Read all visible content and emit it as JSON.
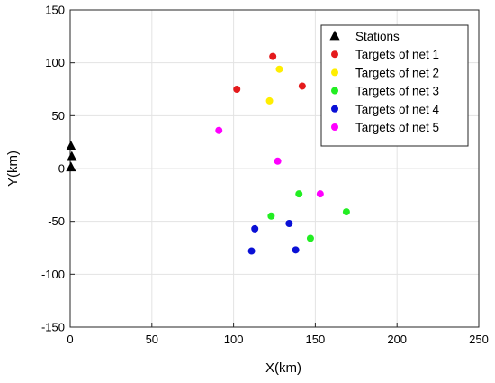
{
  "chart_data": {
    "type": "scatter",
    "xlabel": "X(km)",
    "ylabel": "Y(km)",
    "xlim": [
      0,
      250
    ],
    "ylim": [
      -150,
      150
    ],
    "xticks": [
      0,
      50,
      100,
      150,
      200,
      250
    ],
    "yticks": [
      -150,
      -100,
      -50,
      0,
      50,
      100,
      150
    ],
    "grid": true,
    "legend_position": "top-right",
    "series": [
      {
        "name": "Stations",
        "marker": "triangle",
        "color": "#000000",
        "points": [
          [
            0.5,
            21
          ],
          [
            1.0,
            11
          ],
          [
            0.5,
            1
          ]
        ]
      },
      {
        "name": "Targets of net 1",
        "marker": "circle",
        "color": "#e41a1c",
        "points": [
          [
            124,
            106
          ],
          [
            102,
            75
          ],
          [
            142,
            78
          ]
        ]
      },
      {
        "name": "Targets of net 2",
        "marker": "circle",
        "color": "#ffee00",
        "points": [
          [
            128,
            94
          ],
          [
            122,
            64
          ]
        ]
      },
      {
        "name": "Targets of net 3",
        "marker": "circle",
        "color": "#22ee22",
        "points": [
          [
            140,
            -24
          ],
          [
            169,
            -41
          ],
          [
            123,
            -45
          ],
          [
            147,
            -66
          ]
        ]
      },
      {
        "name": "Targets of net 4",
        "marker": "circle",
        "color": "#0a10d6",
        "points": [
          [
            134,
            -52
          ],
          [
            113,
            -57
          ],
          [
            111,
            -78
          ],
          [
            138,
            -77
          ]
        ]
      },
      {
        "name": "Targets of net 5",
        "marker": "circle",
        "color": "#ff00ff",
        "points": [
          [
            91,
            36
          ],
          [
            127,
            7
          ],
          [
            153,
            -24
          ]
        ]
      }
    ]
  }
}
